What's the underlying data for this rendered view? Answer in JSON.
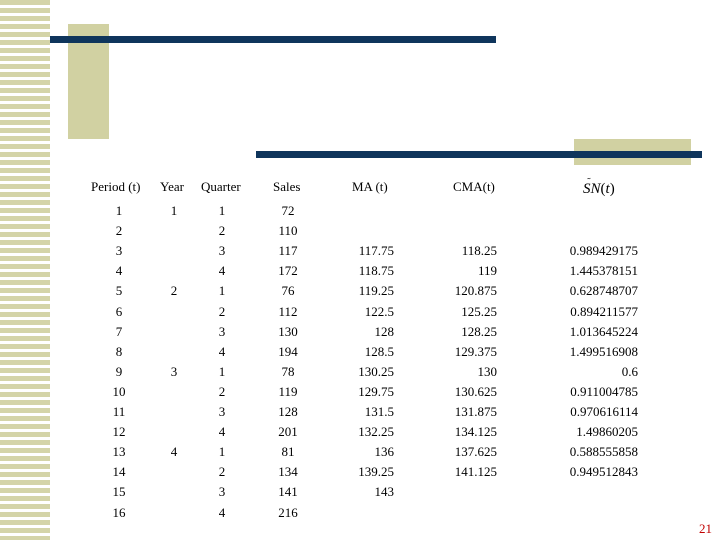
{
  "headers": {
    "period": "Period (t)",
    "year": "Year",
    "quarter": "Quarter",
    "sales": "Sales",
    "ma": "MA (t)",
    "cma": "CMA(t)",
    "sn": "SN",
    "sn_arg": "t"
  },
  "rows": [
    {
      "period": "1",
      "year": "1",
      "quarter": "1",
      "sales": "72",
      "ma": "",
      "cma": "",
      "sn": ""
    },
    {
      "period": "2",
      "year": "",
      "quarter": "2",
      "sales": "110",
      "ma": "",
      "cma": "",
      "sn": ""
    },
    {
      "period": "3",
      "year": "",
      "quarter": "3",
      "sales": "117",
      "ma": "117.75",
      "cma": "118.25",
      "sn": "0.989429175"
    },
    {
      "period": "4",
      "year": "",
      "quarter": "4",
      "sales": "172",
      "ma": "118.75",
      "cma": "119",
      "sn": "1.445378151"
    },
    {
      "period": "5",
      "year": "2",
      "quarter": "1",
      "sales": "76",
      "ma": "119.25",
      "cma": "120.875",
      "sn": "0.628748707"
    },
    {
      "period": "6",
      "year": "",
      "quarter": "2",
      "sales": "112",
      "ma": "122.5",
      "cma": "125.25",
      "sn": "0.894211577"
    },
    {
      "period": "7",
      "year": "",
      "quarter": "3",
      "sales": "130",
      "ma": "128",
      "cma": "128.25",
      "sn": "1.013645224"
    },
    {
      "period": "8",
      "year": "",
      "quarter": "4",
      "sales": "194",
      "ma": "128.5",
      "cma": "129.375",
      "sn": "1.499516908"
    },
    {
      "period": "9",
      "year": "3",
      "quarter": "1",
      "sales": "78",
      "ma": "130.25",
      "cma": "130",
      "sn": "0.6"
    },
    {
      "period": "10",
      "year": "",
      "quarter": "2",
      "sales": "119",
      "ma": "129.75",
      "cma": "130.625",
      "sn": "0.911004785"
    },
    {
      "period": "11",
      "year": "",
      "quarter": "3",
      "sales": "128",
      "ma": "131.5",
      "cma": "131.875",
      "sn": "0.970616114"
    },
    {
      "period": "12",
      "year": "",
      "quarter": "4",
      "sales": "201",
      "ma": "132.25",
      "cma": "134.125",
      "sn": "1.49860205"
    },
    {
      "period": "13",
      "year": "4",
      "quarter": "1",
      "sales": "81",
      "ma": "136",
      "cma": "137.625",
      "sn": "0.588555858"
    },
    {
      "period": "14",
      "year": "",
      "quarter": "2",
      "sales": "134",
      "ma": "139.25",
      "cma": "141.125",
      "sn": "0.949512843"
    },
    {
      "period": "15",
      "year": "",
      "quarter": "3",
      "sales": "141",
      "ma": "143",
      "cma": "",
      "sn": ""
    },
    {
      "period": "16",
      "year": "",
      "quarter": "4",
      "sales": "216",
      "ma": "",
      "cma": "",
      "sn": ""
    }
  ],
  "page_number": "21",
  "colors": {
    "navy_bar": "#0f355c",
    "olive_block": "#d1d1a2",
    "page_number": "#c00000"
  }
}
